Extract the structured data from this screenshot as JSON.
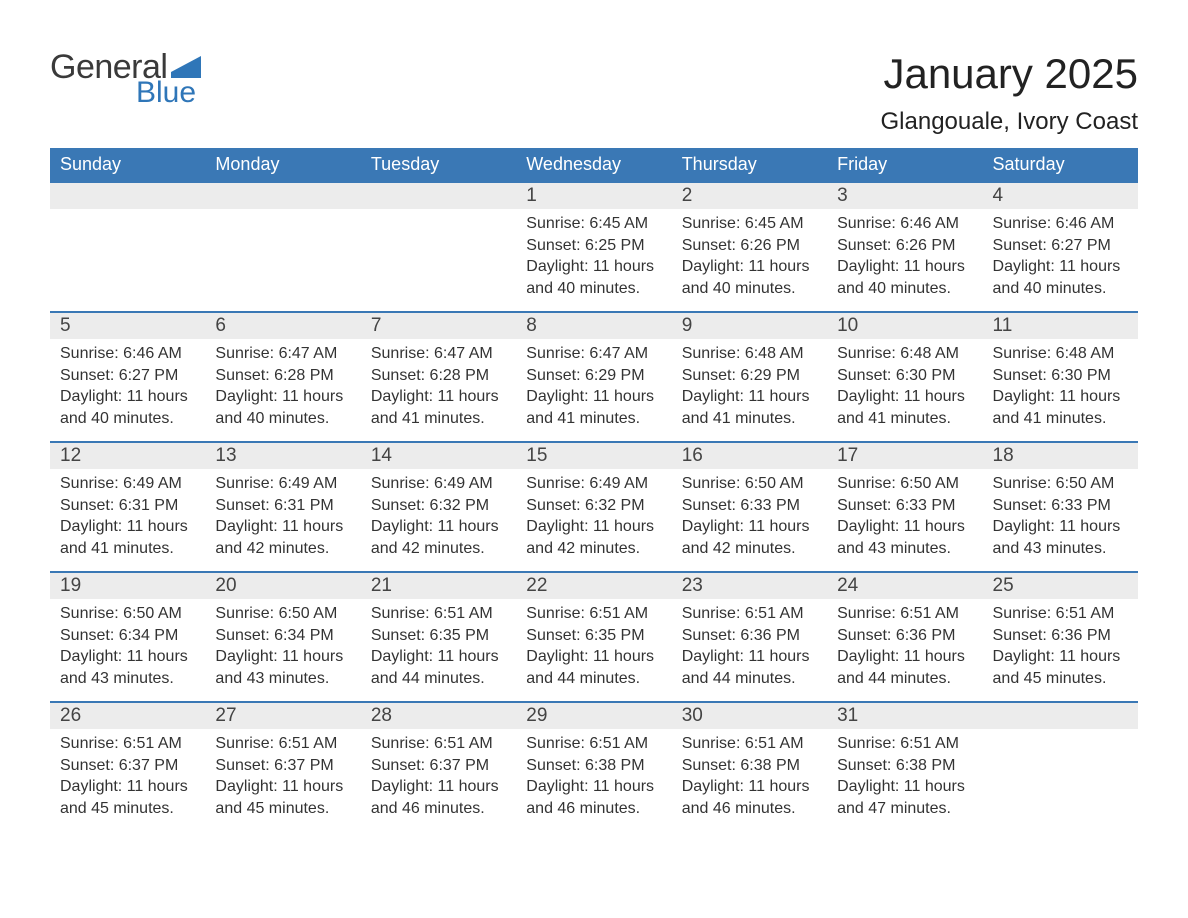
{
  "logo": {
    "text_general": "General",
    "text_blue": "Blue",
    "flag_color": "#2f76b8"
  },
  "header": {
    "month_title": "January 2025",
    "location": "Glangouale, Ivory Coast"
  },
  "colors": {
    "header_bg": "#3a78b5",
    "header_text": "#ffffff",
    "daynum_bg": "#ececec",
    "row_border": "#3a78b5",
    "body_text": "#333333"
  },
  "weekdays": [
    "Sunday",
    "Monday",
    "Tuesday",
    "Wednesday",
    "Thursday",
    "Friday",
    "Saturday"
  ],
  "weeks": [
    [
      null,
      null,
      null,
      {
        "day": "1",
        "sunrise": "Sunrise: 6:45 AM",
        "sunset": "Sunset: 6:25 PM",
        "daylight": "Daylight: 11 hours and 40 minutes."
      },
      {
        "day": "2",
        "sunrise": "Sunrise: 6:45 AM",
        "sunset": "Sunset: 6:26 PM",
        "daylight": "Daylight: 11 hours and 40 minutes."
      },
      {
        "day": "3",
        "sunrise": "Sunrise: 6:46 AM",
        "sunset": "Sunset: 6:26 PM",
        "daylight": "Daylight: 11 hours and 40 minutes."
      },
      {
        "day": "4",
        "sunrise": "Sunrise: 6:46 AM",
        "sunset": "Sunset: 6:27 PM",
        "daylight": "Daylight: 11 hours and 40 minutes."
      }
    ],
    [
      {
        "day": "5",
        "sunrise": "Sunrise: 6:46 AM",
        "sunset": "Sunset: 6:27 PM",
        "daylight": "Daylight: 11 hours and 40 minutes."
      },
      {
        "day": "6",
        "sunrise": "Sunrise: 6:47 AM",
        "sunset": "Sunset: 6:28 PM",
        "daylight": "Daylight: 11 hours and 40 minutes."
      },
      {
        "day": "7",
        "sunrise": "Sunrise: 6:47 AM",
        "sunset": "Sunset: 6:28 PM",
        "daylight": "Daylight: 11 hours and 41 minutes."
      },
      {
        "day": "8",
        "sunrise": "Sunrise: 6:47 AM",
        "sunset": "Sunset: 6:29 PM",
        "daylight": "Daylight: 11 hours and 41 minutes."
      },
      {
        "day": "9",
        "sunrise": "Sunrise: 6:48 AM",
        "sunset": "Sunset: 6:29 PM",
        "daylight": "Daylight: 11 hours and 41 minutes."
      },
      {
        "day": "10",
        "sunrise": "Sunrise: 6:48 AM",
        "sunset": "Sunset: 6:30 PM",
        "daylight": "Daylight: 11 hours and 41 minutes."
      },
      {
        "day": "11",
        "sunrise": "Sunrise: 6:48 AM",
        "sunset": "Sunset: 6:30 PM",
        "daylight": "Daylight: 11 hours and 41 minutes."
      }
    ],
    [
      {
        "day": "12",
        "sunrise": "Sunrise: 6:49 AM",
        "sunset": "Sunset: 6:31 PM",
        "daylight": "Daylight: 11 hours and 41 minutes."
      },
      {
        "day": "13",
        "sunrise": "Sunrise: 6:49 AM",
        "sunset": "Sunset: 6:31 PM",
        "daylight": "Daylight: 11 hours and 42 minutes."
      },
      {
        "day": "14",
        "sunrise": "Sunrise: 6:49 AM",
        "sunset": "Sunset: 6:32 PM",
        "daylight": "Daylight: 11 hours and 42 minutes."
      },
      {
        "day": "15",
        "sunrise": "Sunrise: 6:49 AM",
        "sunset": "Sunset: 6:32 PM",
        "daylight": "Daylight: 11 hours and 42 minutes."
      },
      {
        "day": "16",
        "sunrise": "Sunrise: 6:50 AM",
        "sunset": "Sunset: 6:33 PM",
        "daylight": "Daylight: 11 hours and 42 minutes."
      },
      {
        "day": "17",
        "sunrise": "Sunrise: 6:50 AM",
        "sunset": "Sunset: 6:33 PM",
        "daylight": "Daylight: 11 hours and 43 minutes."
      },
      {
        "day": "18",
        "sunrise": "Sunrise: 6:50 AM",
        "sunset": "Sunset: 6:33 PM",
        "daylight": "Daylight: 11 hours and 43 minutes."
      }
    ],
    [
      {
        "day": "19",
        "sunrise": "Sunrise: 6:50 AM",
        "sunset": "Sunset: 6:34 PM",
        "daylight": "Daylight: 11 hours and 43 minutes."
      },
      {
        "day": "20",
        "sunrise": "Sunrise: 6:50 AM",
        "sunset": "Sunset: 6:34 PM",
        "daylight": "Daylight: 11 hours and 43 minutes."
      },
      {
        "day": "21",
        "sunrise": "Sunrise: 6:51 AM",
        "sunset": "Sunset: 6:35 PM",
        "daylight": "Daylight: 11 hours and 44 minutes."
      },
      {
        "day": "22",
        "sunrise": "Sunrise: 6:51 AM",
        "sunset": "Sunset: 6:35 PM",
        "daylight": "Daylight: 11 hours and 44 minutes."
      },
      {
        "day": "23",
        "sunrise": "Sunrise: 6:51 AM",
        "sunset": "Sunset: 6:36 PM",
        "daylight": "Daylight: 11 hours and 44 minutes."
      },
      {
        "day": "24",
        "sunrise": "Sunrise: 6:51 AM",
        "sunset": "Sunset: 6:36 PM",
        "daylight": "Daylight: 11 hours and 44 minutes."
      },
      {
        "day": "25",
        "sunrise": "Sunrise: 6:51 AM",
        "sunset": "Sunset: 6:36 PM",
        "daylight": "Daylight: 11 hours and 45 minutes."
      }
    ],
    [
      {
        "day": "26",
        "sunrise": "Sunrise: 6:51 AM",
        "sunset": "Sunset: 6:37 PM",
        "daylight": "Daylight: 11 hours and 45 minutes."
      },
      {
        "day": "27",
        "sunrise": "Sunrise: 6:51 AM",
        "sunset": "Sunset: 6:37 PM",
        "daylight": "Daylight: 11 hours and 45 minutes."
      },
      {
        "day": "28",
        "sunrise": "Sunrise: 6:51 AM",
        "sunset": "Sunset: 6:37 PM",
        "daylight": "Daylight: 11 hours and 46 minutes."
      },
      {
        "day": "29",
        "sunrise": "Sunrise: 6:51 AM",
        "sunset": "Sunset: 6:38 PM",
        "daylight": "Daylight: 11 hours and 46 minutes."
      },
      {
        "day": "30",
        "sunrise": "Sunrise: 6:51 AM",
        "sunset": "Sunset: 6:38 PM",
        "daylight": "Daylight: 11 hours and 46 minutes."
      },
      {
        "day": "31",
        "sunrise": "Sunrise: 6:51 AM",
        "sunset": "Sunset: 6:38 PM",
        "daylight": "Daylight: 11 hours and 47 minutes."
      },
      null
    ]
  ]
}
